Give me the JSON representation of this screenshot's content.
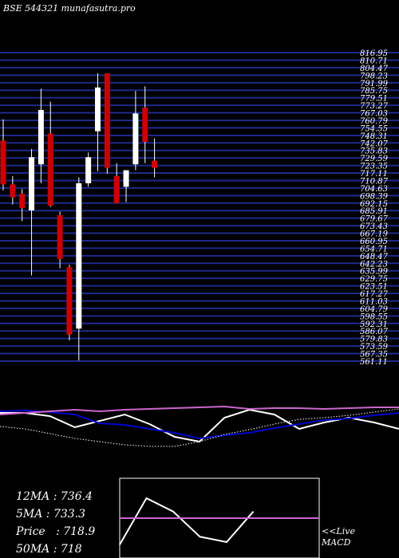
{
  "title": "BSE 544321 munafasutra.pro",
  "colors": {
    "background": "#000000",
    "grid_line": "#1f2a8c",
    "bull_candle": "#ffffff",
    "bear_candle": "#cc0000",
    "price_label": "#ffffff",
    "ma_short": "#ffffff",
    "ma_mid": "#0000cc",
    "ma_long": "#cc66cc",
    "macd_line": "#ffffff",
    "macd_signal": "#cc66cc"
  },
  "stats": {
    "ma12": "12MA : 736.4",
    "ma5": "5MA : 733.3",
    "price": "Price   : 718.9",
    "ma50": "50MA : 718"
  },
  "macd_label": {
    "line1": "<<Live",
    "line2": "MACD"
  },
  "chart_data": [
    {
      "type": "candlestick",
      "title": "BSE 544321 munafasutra.pro",
      "ylim": [
        555.5,
        816.5
      ],
      "price_labels": [
        "816.95",
        "810.71",
        "804.47",
        "798.23",
        "791.99",
        "785.75",
        "779.51",
        "773.27",
        "767.03",
        "760.79",
        "754.55",
        "748.31",
        "742.07",
        "735.83",
        "729.59",
        "723.35",
        "717.11",
        "710.87",
        "704.63",
        "698.39",
        "692.15",
        "685.91",
        "679.67",
        "673.43",
        "667.19",
        "660.95",
        "654.71",
        "648.47",
        "642.23",
        "635.99",
        "629.75",
        "623.51",
        "617.27",
        "611.03",
        "604.79",
        "598.55",
        "592.31",
        "586.07",
        "579.83",
        "573.59",
        "567.35",
        "561.11"
      ],
      "candles": [
        {
          "open": 742,
          "high": 760,
          "low": 700,
          "close": 705,
          "direction": "down"
        },
        {
          "open": 705,
          "high": 712,
          "low": 688,
          "close": 694,
          "direction": "down"
        },
        {
          "open": 697,
          "high": 701,
          "low": 674,
          "close": 685,
          "direction": "down"
        },
        {
          "open": 683,
          "high": 735,
          "low": 628,
          "close": 728,
          "direction": "up"
        },
        {
          "open": 722,
          "high": 786,
          "low": 706,
          "close": 768,
          "direction": "up"
        },
        {
          "open": 748,
          "high": 775,
          "low": 686,
          "close": 687,
          "direction": "down"
        },
        {
          "open": 679,
          "high": 682,
          "low": 634,
          "close": 642,
          "direction": "down"
        },
        {
          "open": 635,
          "high": 637,
          "low": 573,
          "close": 578,
          "direction": "down"
        },
        {
          "open": 583,
          "high": 711,
          "low": 556,
          "close": 706,
          "direction": "up"
        },
        {
          "open": 706,
          "high": 732,
          "low": 703,
          "close": 728,
          "direction": "up"
        },
        {
          "open": 750,
          "high": 799,
          "low": 716,
          "close": 787,
          "direction": "up"
        },
        {
          "open": 799,
          "high": 799,
          "low": 714,
          "close": 719,
          "direction": "down"
        },
        {
          "open": 712,
          "high": 723,
          "low": 689,
          "close": 689,
          "direction": "down"
        },
        {
          "open": 703,
          "high": 716,
          "low": 690,
          "close": 717,
          "direction": "up"
        },
        {
          "open": 722,
          "high": 784,
          "low": 717,
          "close": 765,
          "direction": "up"
        },
        {
          "open": 770,
          "high": 788,
          "low": 723,
          "close": 741,
          "direction": "down"
        },
        {
          "open": 725,
          "high": 744,
          "low": 711,
          "close": 719,
          "direction": "down"
        }
      ]
    },
    {
      "type": "line",
      "series": [
        {
          "color": "ma_short",
          "style": "solid",
          "values": [
            0.82,
            0.82,
            0.78,
            0.64,
            0.72,
            0.8,
            0.68,
            0.52,
            0.46,
            0.76,
            0.86,
            0.8,
            0.62,
            0.7,
            0.76,
            0.7,
            0.62
          ]
        },
        {
          "color": "ma_mid",
          "style": "solid",
          "values": [
            0.84,
            0.85,
            0.83,
            0.8,
            0.69,
            0.67,
            0.62,
            0.57,
            0.5,
            0.54,
            0.57,
            0.63,
            0.68,
            0.73,
            0.75,
            0.79,
            0.82
          ]
        },
        {
          "color": "ma_long",
          "style": "solid",
          "values": [
            0.8,
            0.82,
            0.84,
            0.86,
            0.84,
            0.86,
            0.87,
            0.88,
            0.89,
            0.9,
            0.87,
            0.88,
            0.88,
            0.87,
            0.88,
            0.89,
            0.89
          ]
        },
        {
          "color": "ma_short",
          "style": "dotted",
          "values": [
            0.65,
            0.62,
            0.56,
            0.5,
            0.46,
            0.42,
            0.4,
            0.4,
            0.46,
            0.55,
            0.61,
            0.68,
            0.74,
            0.76,
            0.79,
            0.83,
            0.87
          ]
        }
      ]
    },
    {
      "type": "line",
      "title": "MACD",
      "series": [
        {
          "color": "macd_line",
          "values": [
            1,
            4.5,
            3.5,
            1.6,
            1.2,
            3.5
          ]
        },
        {
          "color": "macd_signal",
          "values": [
            3,
            3,
            3,
            3,
            3,
            3,
            3,
            3,
            3,
            3
          ]
        }
      ]
    }
  ]
}
